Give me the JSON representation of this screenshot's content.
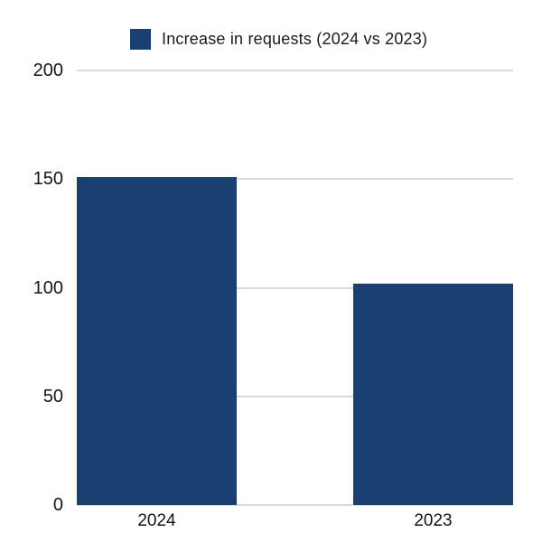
{
  "page": {
    "background": "#ffffff"
  },
  "legend": {
    "label": "Increase in requests (2024 vs 2023)",
    "swatch_color": "#1a4072"
  },
  "chart_data": {
    "type": "bar",
    "title": "",
    "categories": [
      "2024",
      "2023"
    ],
    "values": [
      151,
      102
    ],
    "series": [
      {
        "name": "Increase in requests (2024 vs 2023)",
        "values": [
          151,
          102
        ]
      }
    ],
    "xlabel": "",
    "ylabel": "",
    "ylim": [
      0,
      200
    ],
    "yticks": [
      0,
      50,
      100,
      150,
      200
    ],
    "grid": true,
    "legend_entries": [
      "Increase in requests (2024 vs 2023)"
    ],
    "legend_position": "top-center",
    "bar_color": "#1a4072",
    "gridline_color": "#dcdad7",
    "label_color": "#141414"
  }
}
